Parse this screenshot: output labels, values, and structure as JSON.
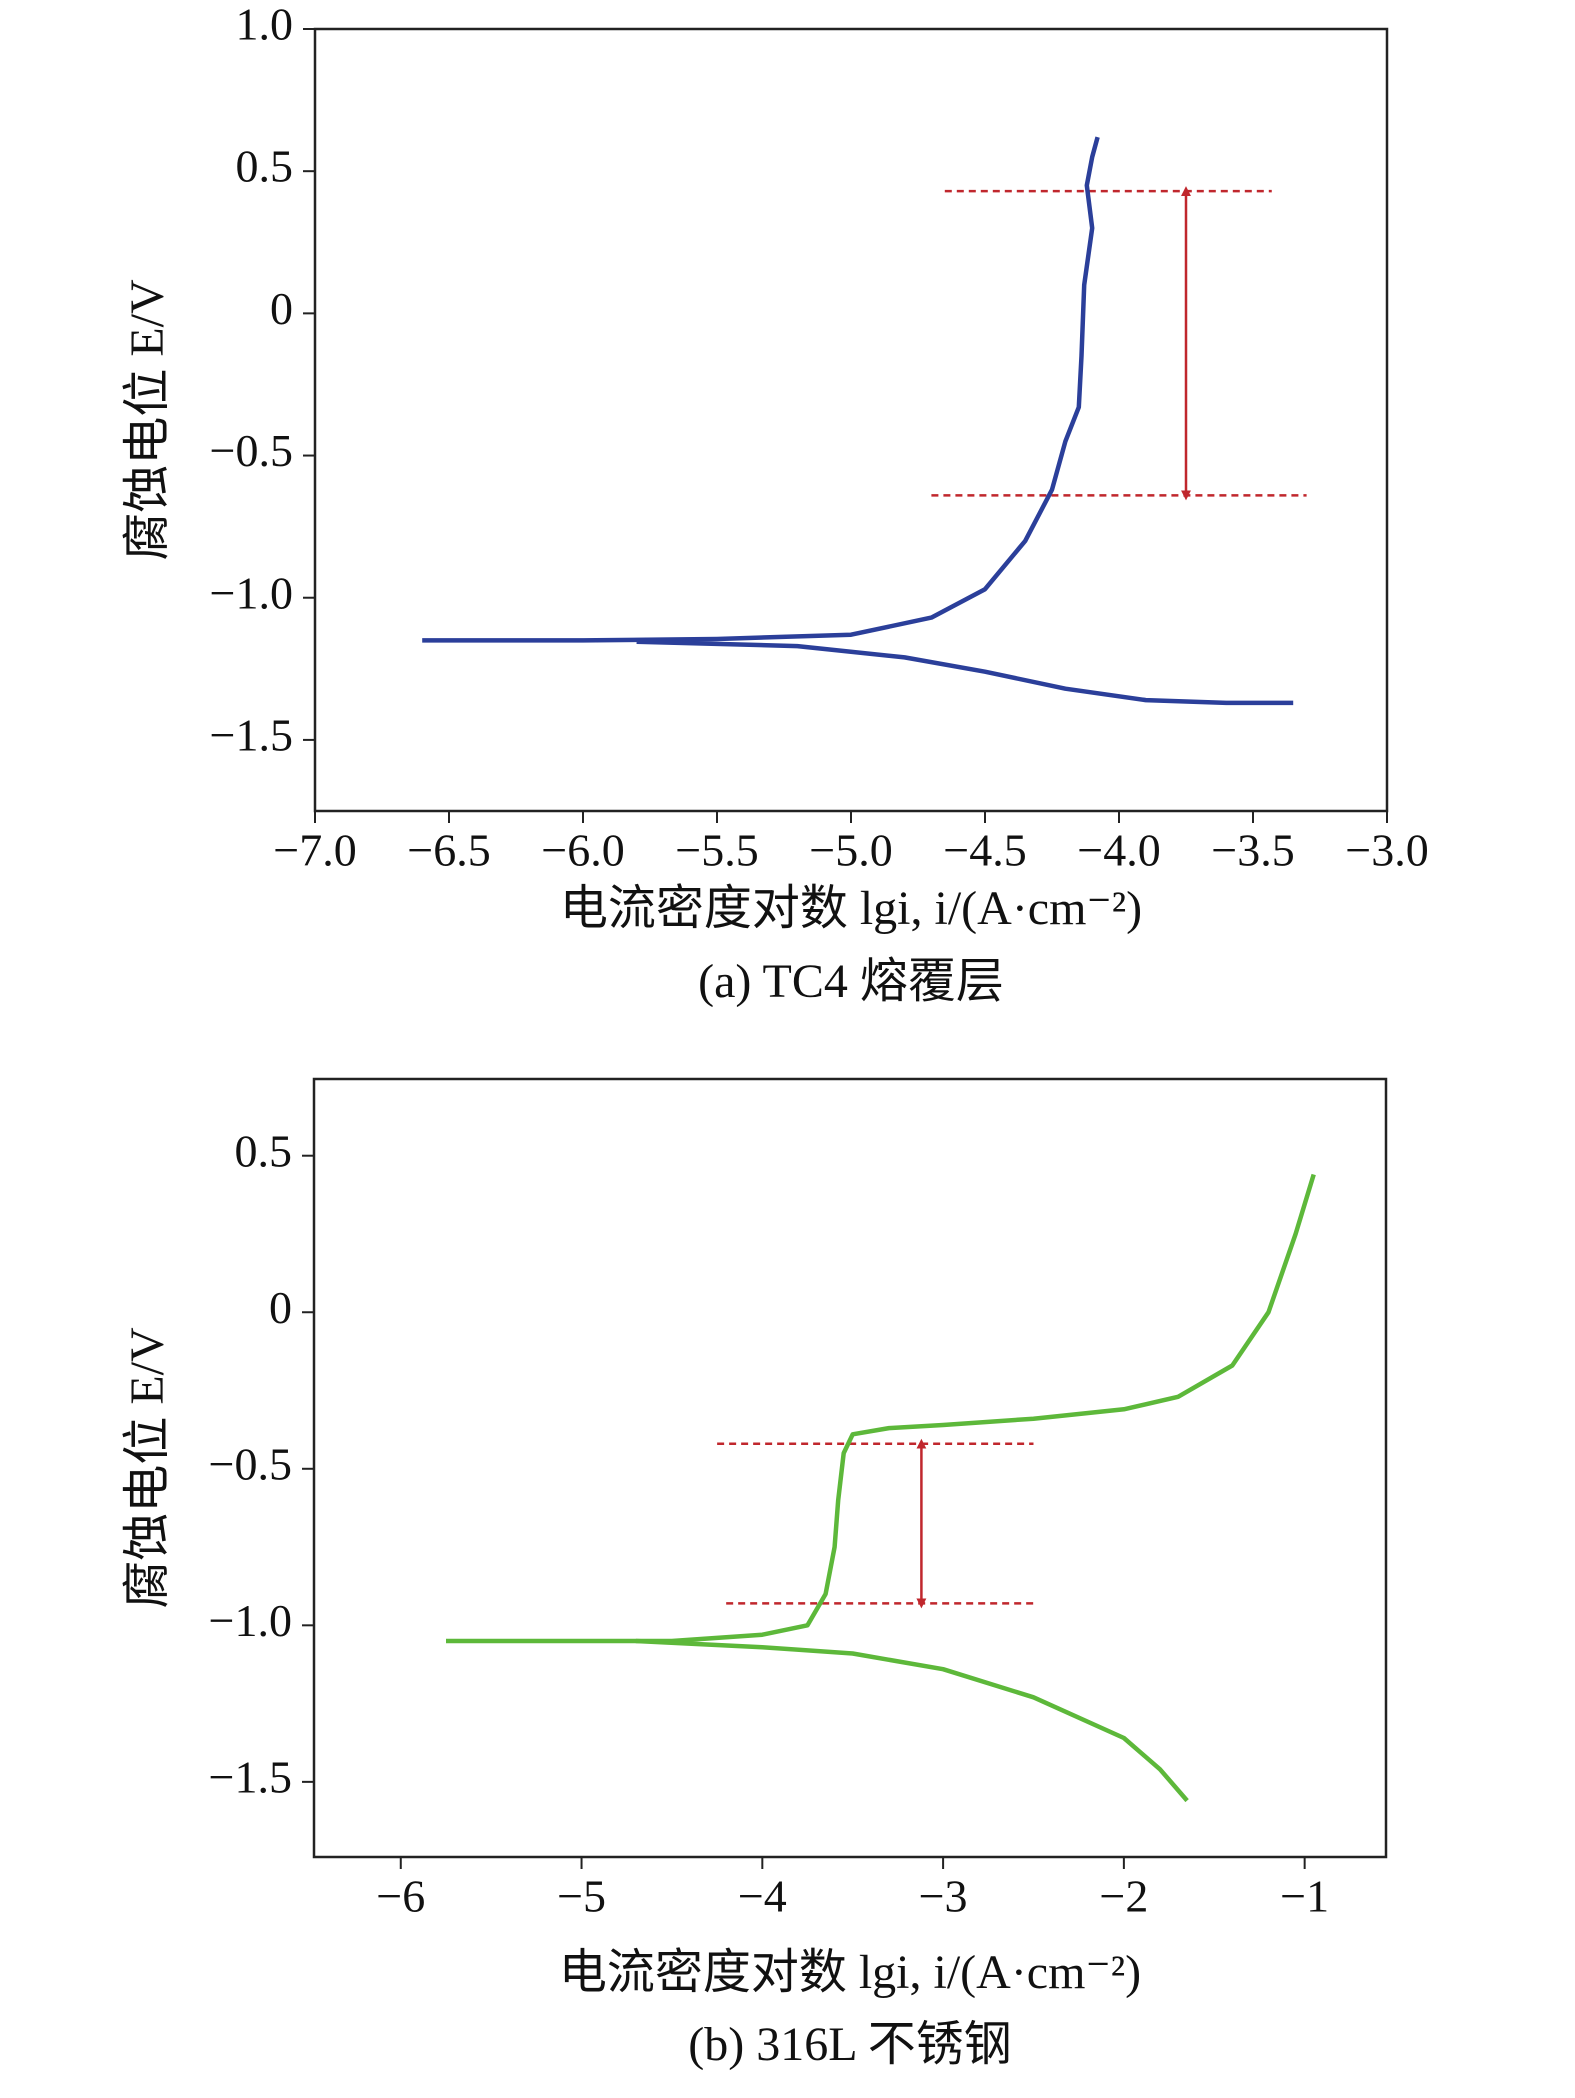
{
  "chart_data": [
    {
      "type": "line",
      "y_label": "腐蚀电位 E/V",
      "x_label": "电流密度对数 lgi, i/(A·cm⁻²)",
      "caption": "(a) TC4 熔覆层",
      "xlim": [
        -7.0,
        -3.0
      ],
      "ylim": [
        -1.75,
        1.0
      ],
      "xticks": [
        {
          "value": -7.0,
          "label": "−7.0"
        },
        {
          "value": -6.5,
          "label": "−6.5"
        },
        {
          "value": -6.0,
          "label": "−6.0"
        },
        {
          "value": -5.5,
          "label": "−5.5"
        },
        {
          "value": -5.0,
          "label": "−5.0"
        },
        {
          "value": -4.5,
          "label": "−4.5"
        },
        {
          "value": -4.0,
          "label": "−4.0"
        },
        {
          "value": -3.5,
          "label": "−3.5"
        },
        {
          "value": -3.0,
          "label": "−3.0"
        }
      ],
      "yticks": [
        {
          "value": 1.0,
          "label": "1.0"
        },
        0.5,
        0,
        {
          "value": -0.5,
          "label": "−0.5"
        },
        {
          "value": -1.0,
          "label": "−1.0"
        },
        {
          "value": -1.5,
          "label": "−1.5"
        }
      ],
      "series": [
        {
          "color": "#2b3f9a",
          "x": [
            -6.6,
            -6.0,
            -5.5,
            -5.0,
            -4.7,
            -4.5,
            -4.35,
            -4.25,
            -4.2,
            -4.15,
            -4.14,
            -4.13,
            -4.1,
            -4.12,
            -4.1,
            -4.08
          ],
          "values": [
            -1.15,
            -1.15,
            -1.145,
            -1.13,
            -1.07,
            -0.97,
            -0.8,
            -0.62,
            -0.45,
            -0.33,
            -0.15,
            0.1,
            0.3,
            0.45,
            0.55,
            0.62
          ]
        },
        {
          "color": "#2b3f9a",
          "x": [
            -5.8,
            -5.2,
            -4.8,
            -4.5,
            -4.2,
            -3.9,
            -3.6,
            -3.35
          ],
          "values": [
            -1.155,
            -1.17,
            -1.21,
            -1.26,
            -1.32,
            -1.36,
            -1.37,
            -1.37
          ]
        }
      ],
      "reference_lines": [
        {
          "y": 0.43,
          "x": [
            -4.65,
            -3.43
          ]
        },
        {
          "y": -0.64,
          "x": [
            -4.7,
            -3.3
          ]
        }
      ],
      "reference_color": "#c0272d",
      "arrow_x": -3.75
    },
    {
      "type": "line",
      "y_label": "腐蚀电位 E/V",
      "x_label": "电流密度对数 lgi, i/(A·cm⁻²)",
      "caption": "(b) 316L 不锈钢",
      "xlim": [
        -6.48,
        -0.55
      ],
      "ylim": [
        -1.74,
        0.745
      ],
      "xticks": [
        {
          "value": -6,
          "label": "−6"
        },
        {
          "value": -5,
          "label": "−5"
        },
        {
          "value": -4,
          "label": "−4"
        },
        {
          "value": -3,
          "label": "−3"
        },
        {
          "value": -2,
          "label": "−2"
        },
        {
          "value": -1,
          "label": "−1"
        }
      ],
      "yticks": [
        0.5,
        0,
        {
          "value": -0.5,
          "label": "−0.5"
        },
        {
          "value": -1.0,
          "label": "−1.0"
        },
        {
          "value": -1.5,
          "label": "−1.5"
        }
      ],
      "series": [
        {
          "color": "#5db83a",
          "x": [
            -5.75,
            -4.5,
            -4.0,
            -3.75,
            -3.65,
            -3.6,
            -3.58,
            -3.55,
            -3.5,
            -3.3,
            -3.0,
            -2.5,
            -2.0,
            -1.7,
            -1.4,
            -1.2,
            -1.05,
            -0.95
          ],
          "values": [
            -1.05,
            -1.05,
            -1.03,
            -1.0,
            -0.9,
            -0.75,
            -0.6,
            -0.45,
            -0.39,
            -0.37,
            -0.36,
            -0.34,
            -0.31,
            -0.27,
            -0.17,
            0.0,
            0.25,
            0.44
          ]
        },
        {
          "color": "#5db83a",
          "x": [
            -4.7,
            -4.0,
            -3.5,
            -3.0,
            -2.5,
            -2.0,
            -1.8,
            -1.65
          ],
          "values": [
            -1.05,
            -1.07,
            -1.09,
            -1.14,
            -1.23,
            -1.36,
            -1.46,
            -1.56
          ]
        }
      ],
      "reference_lines": [
        {
          "y": -0.42,
          "x": [
            -4.25,
            -2.5
          ]
        },
        {
          "y": -0.93,
          "x": [
            -4.2,
            -2.5
          ]
        }
      ],
      "reference_color": "#c0272d",
      "arrow_x": -3.12
    }
  ]
}
